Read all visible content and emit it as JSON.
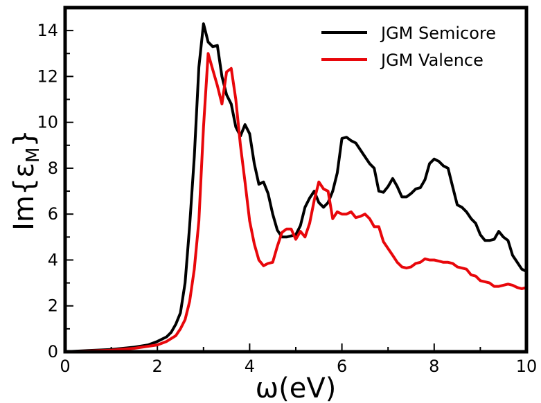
{
  "chart_data": {
    "type": "line",
    "title": "",
    "xlabel": "ω(eV)",
    "ylabel_main": "Im{ε",
    "ylabel_sub": "M",
    "ylabel_close": "}",
    "xlim": [
      0,
      10
    ],
    "ylim": [
      0,
      15
    ],
    "x_ticks": [
      0,
      2,
      4,
      6,
      8,
      10
    ],
    "y_ticks": [
      0,
      2,
      4,
      6,
      8,
      10,
      12,
      14
    ],
    "x_minor_step": 1,
    "y_minor_step": 1,
    "grid": false,
    "legend_position": "top-right",
    "series": [
      {
        "name": "JGM Semicore",
        "color": "#000000",
        "x": [
          0,
          0.5,
          1.0,
          1.5,
          1.8,
          2.0,
          2.2,
          2.3,
          2.4,
          2.5,
          2.6,
          2.7,
          2.8,
          2.9,
          3.0,
          3.1,
          3.2,
          3.3,
          3.4,
          3.5,
          3.6,
          3.7,
          3.8,
          3.9,
          4.0,
          4.1,
          4.2,
          4.3,
          4.4,
          4.5,
          4.6,
          4.7,
          4.8,
          4.9,
          5.0,
          5.1,
          5.2,
          5.3,
          5.4,
          5.5,
          5.6,
          5.7,
          5.8,
          5.9,
          6.0,
          6.1,
          6.2,
          6.3,
          6.4,
          6.5,
          6.6,
          6.7,
          6.8,
          6.9,
          7.0,
          7.1,
          7.2,
          7.3,
          7.4,
          7.5,
          7.6,
          7.7,
          7.8,
          7.9,
          8.0,
          8.1,
          8.2,
          8.3,
          8.4,
          8.5,
          8.6,
          8.7,
          8.8,
          8.9,
          9.0,
          9.1,
          9.2,
          9.3,
          9.4,
          9.5,
          9.6,
          9.7,
          9.8,
          9.9,
          10.0
        ],
        "y": [
          0.0,
          0.05,
          0.1,
          0.2,
          0.3,
          0.45,
          0.65,
          0.85,
          1.2,
          1.7,
          3.0,
          5.5,
          8.5,
          12.4,
          14.3,
          13.5,
          13.3,
          13.35,
          12.0,
          11.2,
          10.8,
          9.8,
          9.4,
          9.9,
          9.5,
          8.2,
          7.3,
          7.4,
          6.9,
          6.0,
          5.3,
          5.0,
          5.0,
          5.05,
          5.1,
          5.5,
          6.3,
          6.7,
          7.0,
          6.5,
          6.3,
          6.5,
          7.0,
          7.8,
          9.3,
          9.35,
          9.2,
          9.1,
          8.8,
          8.5,
          8.2,
          8.0,
          7.0,
          6.95,
          7.2,
          7.55,
          7.2,
          6.75,
          6.75,
          6.9,
          7.1,
          7.15,
          7.5,
          8.2,
          8.4,
          8.3,
          8.1,
          8.0,
          7.2,
          6.4,
          6.3,
          6.1,
          5.8,
          5.6,
          5.1,
          4.85,
          4.85,
          4.9,
          5.25,
          5.0,
          4.85,
          4.2,
          3.9,
          3.6,
          3.5
        ]
      },
      {
        "name": "JGM Valence",
        "color": "#e8070b",
        "x": [
          0,
          0.5,
          1.0,
          1.5,
          2.0,
          2.2,
          2.4,
          2.5,
          2.6,
          2.7,
          2.8,
          2.9,
          3.0,
          3.1,
          3.2,
          3.3,
          3.4,
          3.5,
          3.6,
          3.7,
          3.8,
          3.9,
          4.0,
          4.1,
          4.2,
          4.3,
          4.4,
          4.5,
          4.6,
          4.7,
          4.8,
          4.9,
          5.0,
          5.1,
          5.2,
          5.3,
          5.4,
          5.5,
          5.6,
          5.7,
          5.8,
          5.9,
          6.0,
          6.1,
          6.2,
          6.3,
          6.4,
          6.5,
          6.6,
          6.7,
          6.8,
          6.9,
          7.0,
          7.1,
          7.2,
          7.3,
          7.4,
          7.5,
          7.6,
          7.7,
          7.8,
          7.9,
          8.0,
          8.1,
          8.2,
          8.3,
          8.4,
          8.5,
          8.6,
          8.7,
          8.8,
          8.9,
          9.0,
          9.1,
          9.2,
          9.3,
          9.4,
          9.5,
          9.6,
          9.7,
          9.8,
          9.9,
          10.0
        ],
        "y": [
          0.0,
          0.03,
          0.07,
          0.15,
          0.3,
          0.45,
          0.7,
          1.0,
          1.4,
          2.2,
          3.6,
          5.7,
          9.8,
          13.0,
          12.3,
          11.6,
          10.8,
          12.2,
          12.35,
          11.0,
          9.0,
          7.4,
          5.7,
          4.7,
          4.0,
          3.75,
          3.85,
          3.9,
          4.6,
          5.2,
          5.35,
          5.35,
          4.9,
          5.25,
          5.0,
          5.6,
          6.6,
          7.4,
          7.1,
          7.0,
          5.8,
          6.1,
          6.0,
          6.0,
          6.1,
          5.85,
          5.9,
          6.0,
          5.8,
          5.45,
          5.45,
          4.8,
          4.5,
          4.2,
          3.9,
          3.7,
          3.65,
          3.7,
          3.85,
          3.9,
          4.05,
          4.0,
          4.0,
          3.95,
          3.9,
          3.9,
          3.85,
          3.7,
          3.65,
          3.6,
          3.35,
          3.3,
          3.1,
          3.05,
          3.0,
          2.85,
          2.85,
          2.9,
          2.95,
          2.9,
          2.8,
          2.75,
          2.8
        ]
      }
    ]
  }
}
